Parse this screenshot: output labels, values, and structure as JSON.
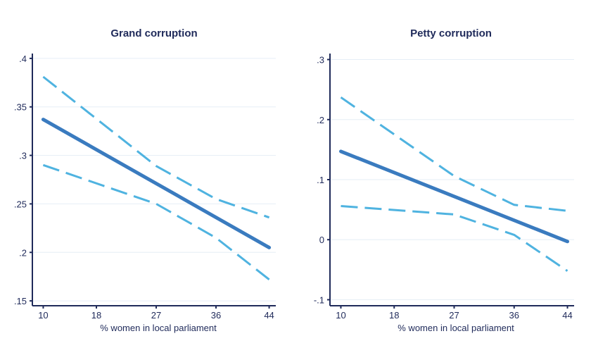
{
  "chart_data": [
    {
      "type": "line",
      "title": "Grand corruption",
      "xlabel": "% women in local parliament",
      "ylabel": "",
      "x_ticks": [
        10,
        18,
        27,
        36,
        44
      ],
      "x_tick_labels": [
        "10",
        "18",
        "27",
        "36",
        "44"
      ],
      "y_ticks": [
        0.15,
        0.2,
        0.25,
        0.3,
        0.35,
        0.4
      ],
      "y_tick_labels": [
        ".15",
        ".2",
        ".25",
        ".3",
        ".35",
        ".4"
      ],
      "xlim": [
        9,
        45
      ],
      "ylim": [
        0.145,
        0.405
      ],
      "series": [
        {
          "name": "estimate",
          "style": "solid",
          "color": "#3a7bbf",
          "x": [
            10,
            44
          ],
          "y": [
            0.337,
            0.205
          ]
        },
        {
          "name": "upper bound",
          "style": "dashed",
          "color": "#4fb3e0",
          "x": [
            10,
            27,
            36,
            44
          ],
          "y": [
            0.381,
            0.289,
            0.255,
            0.236
          ]
        },
        {
          "name": "lower bound",
          "style": "dashed",
          "color": "#4fb3e0",
          "x": [
            10,
            27,
            36,
            44
          ],
          "y": [
            0.29,
            0.25,
            0.215,
            0.172
          ]
        }
      ]
    },
    {
      "type": "line",
      "title": "Petty corruption",
      "xlabel": "% women in local parliament",
      "ylabel": "",
      "x_ticks": [
        10,
        18,
        27,
        36,
        44
      ],
      "x_tick_labels": [
        "10",
        "18",
        "27",
        "36",
        "44"
      ],
      "y_ticks": [
        -0.1,
        0,
        0.1,
        0.2,
        0.3
      ],
      "y_tick_labels": [
        ".1",
        "0",
        ".1",
        ".2",
        ".3"
      ],
      "y_tick_prefix": [
        "-",
        "",
        "",
        "",
        ""
      ],
      "xlim": [
        9,
        45
      ],
      "ylim": [
        -0.11,
        0.31
      ],
      "series": [
        {
          "name": "estimate",
          "style": "solid",
          "color": "#3a7bbf",
          "x": [
            10,
            44
          ],
          "y": [
            0.147,
            -0.003
          ]
        },
        {
          "name": "upper bound",
          "style": "dashed",
          "color": "#4fb3e0",
          "x": [
            10,
            27,
            36,
            44
          ],
          "y": [
            0.237,
            0.106,
            0.058,
            0.048
          ]
        },
        {
          "name": "lower bound",
          "style": "dashed",
          "color": "#4fb3e0",
          "x": [
            10,
            27,
            36,
            44
          ],
          "y": [
            0.056,
            0.042,
            0.008,
            -0.052
          ]
        }
      ]
    }
  ]
}
